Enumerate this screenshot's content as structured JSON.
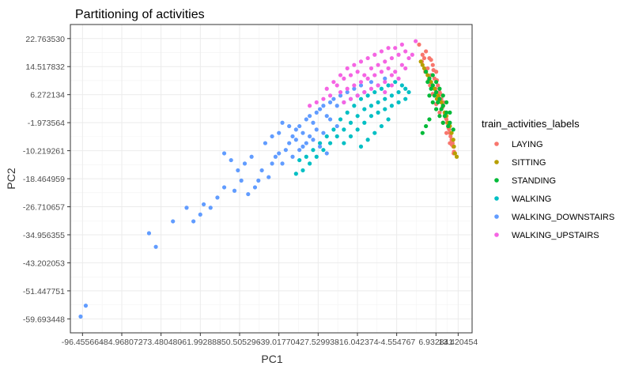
{
  "chart_data": {
    "type": "scatter",
    "title": "Partitioning of activities",
    "xlabel": "PC1",
    "ylabel": "PC2",
    "xlim": [
      -100.0,
      17.5
    ],
    "ylim": [
      -63.8,
      26.9
    ],
    "grid": true,
    "legend": {
      "title": "train_activities_labels",
      "placement": "right"
    },
    "x_ticks": [
      {
        "value": -96.455664,
        "label": "-96.455664"
      },
      {
        "value": -84.968072,
        "label": "-84.968072"
      },
      {
        "value": -73.48048,
        "label": "-73.480480"
      },
      {
        "value": -61.992888,
        "label": "-61.992888"
      },
      {
        "value": -50.505296,
        "label": "-50.505296"
      },
      {
        "value": -39.017704,
        "label": "-39.017704"
      },
      {
        "value": -27.529938,
        "label": "-27.529938"
      },
      {
        "value": -16.042374,
        "label": "-16.042374"
      },
      {
        "value": -4.554767,
        "label": "-4.554767"
      },
      {
        "value": 6.932841,
        "label": "6.932841"
      },
      {
        "value": 13.420454,
        "label": "13.420454"
      }
    ],
    "x_tick_note": "tick labels overlap in the original rendering",
    "y_ticks": [
      {
        "value": 22.76353,
        "label": "22.763530"
      },
      {
        "value": 14.517832,
        "label": "14.517832"
      },
      {
        "value": 6.272134,
        "label": "6.272134"
      },
      {
        "value": -1.973564,
        "label": "-1.973564"
      },
      {
        "value": -10.219261,
        "label": "-10.219261"
      },
      {
        "value": -18.464959,
        "label": "-18.464959"
      },
      {
        "value": -26.710657,
        "label": "-26.710657"
      },
      {
        "value": -34.956355,
        "label": "-34.956355"
      },
      {
        "value": -43.202053,
        "label": "-43.202053"
      },
      {
        "value": -51.447751,
        "label": "-51.447751"
      },
      {
        "value": -59.693448,
        "label": "-59.693448"
      }
    ],
    "series": [
      {
        "name": "LAYING",
        "color": "#F8766D",
        "points": [
          [
            2,
            21
          ],
          [
            4,
            19
          ],
          [
            5,
            17
          ],
          [
            5.5,
            16.5
          ],
          [
            3,
            18
          ],
          [
            6,
            15
          ],
          [
            7,
            13
          ],
          [
            6.5,
            11
          ],
          [
            7.5,
            9
          ],
          [
            8,
            7
          ],
          [
            8.5,
            5
          ],
          [
            9,
            3
          ],
          [
            9.5,
            1
          ],
          [
            10,
            -1
          ],
          [
            10.5,
            -3
          ],
          [
            11,
            -5
          ],
          [
            11.5,
            -7
          ],
          [
            12,
            -9
          ],
          [
            12.2,
            -10.5
          ],
          [
            11.8,
            -8
          ],
          [
            10.8,
            -4
          ],
          [
            9.8,
            -0.5
          ],
          [
            8.8,
            2.5
          ],
          [
            7.8,
            6
          ],
          [
            6.8,
            8
          ],
          [
            5.5,
            12
          ],
          [
            4.5,
            14
          ],
          [
            3.5,
            17
          ],
          [
            9.2,
            4
          ],
          [
            10.2,
            -2
          ],
          [
            11.2,
            -6
          ],
          [
            12.1,
            -11
          ],
          [
            7.2,
            10.5
          ],
          [
            6.2,
            13.5
          ],
          [
            8.2,
            6.5
          ],
          [
            9.6,
            0.5
          ],
          [
            10.6,
            -3.5
          ],
          [
            11.6,
            -8.5
          ],
          [
            5.2,
            9
          ],
          [
            6,
            6.5
          ],
          [
            7,
            3.5
          ],
          [
            8,
            1
          ],
          [
            9,
            -2
          ],
          [
            10,
            -5
          ],
          [
            11,
            -8
          ],
          [
            4.8,
            10.5
          ],
          [
            3.8,
            13
          ],
          [
            2.8,
            16
          ]
        ]
      },
      {
        "name": "SITTING",
        "color": "#B79F00",
        "points": [
          [
            2.5,
            16
          ],
          [
            4,
            13
          ],
          [
            5,
            11
          ],
          [
            6,
            9
          ],
          [
            7,
            7
          ],
          [
            8,
            5
          ],
          [
            9,
            3
          ],
          [
            10,
            0
          ],
          [
            11,
            -3
          ],
          [
            12,
            -7
          ],
          [
            12.5,
            -11
          ],
          [
            3.5,
            14
          ],
          [
            4.5,
            12
          ],
          [
            6.5,
            8
          ],
          [
            7.5,
            6
          ],
          [
            8.5,
            4
          ],
          [
            9.5,
            1
          ],
          [
            10.5,
            -2
          ],
          [
            11.5,
            -5
          ],
          [
            12.2,
            -9
          ],
          [
            13,
            -12
          ],
          [
            3,
            15
          ],
          [
            5.5,
            10
          ],
          [
            7.2,
            5
          ]
        ]
      },
      {
        "name": "STANDING",
        "color": "#00BA38",
        "points": [
          [
            4,
            13
          ],
          [
            5,
            11
          ],
          [
            6,
            9
          ],
          [
            7,
            7
          ],
          [
            8,
            5
          ],
          [
            9,
            3
          ],
          [
            10,
            1
          ],
          [
            11,
            -2
          ],
          [
            4.5,
            10
          ],
          [
            5.5,
            8
          ],
          [
            6.5,
            6
          ],
          [
            7.5,
            4
          ],
          [
            8.5,
            2
          ],
          [
            9.5,
            0
          ],
          [
            10.5,
            -3
          ],
          [
            6,
            12
          ],
          [
            7,
            10
          ],
          [
            8,
            8
          ],
          [
            9,
            6
          ],
          [
            10,
            4
          ],
          [
            11,
            1
          ],
          [
            5,
            6
          ],
          [
            6,
            4
          ],
          [
            7,
            2
          ],
          [
            8,
            0
          ],
          [
            9,
            -2
          ],
          [
            4,
            -3
          ],
          [
            3,
            -5
          ],
          [
            5,
            -1
          ],
          [
            12,
            -4
          ]
        ]
      },
      {
        "name": "WALKING",
        "color": "#00BFC4",
        "points": [
          [
            -22,
            -6
          ],
          [
            -20,
            -4
          ],
          [
            -18,
            -2
          ],
          [
            -16,
            0
          ],
          [
            -14,
            2
          ],
          [
            -12,
            3
          ],
          [
            -10,
            4
          ],
          [
            -8,
            5
          ],
          [
            -6,
            6
          ],
          [
            -4,
            7
          ],
          [
            -2,
            8
          ],
          [
            -24,
            -8
          ],
          [
            -26,
            -10
          ],
          [
            -28,
            -12
          ],
          [
            -30,
            -14
          ],
          [
            -32,
            -16
          ],
          [
            -34,
            -17
          ],
          [
            -21,
            -1
          ],
          [
            -19,
            1
          ],
          [
            -17,
            3
          ],
          [
            -15,
            5
          ],
          [
            -13,
            6
          ],
          [
            -11,
            7
          ],
          [
            -9,
            8
          ],
          [
            -7,
            9
          ],
          [
            -5,
            10
          ],
          [
            -3,
            9
          ],
          [
            -1,
            7
          ],
          [
            -23,
            -4
          ],
          [
            -25,
            -6
          ],
          [
            -27,
            -8
          ],
          [
            -29,
            -10
          ],
          [
            -31,
            -12
          ],
          [
            -33,
            -13
          ],
          [
            -20,
            -8
          ],
          [
            -18,
            -6
          ],
          [
            -16,
            -4
          ],
          [
            -14,
            -2
          ],
          [
            -12,
            0
          ],
          [
            -10,
            1
          ],
          [
            -8,
            2
          ],
          [
            -6,
            3
          ],
          [
            -4,
            4
          ],
          [
            -2,
            5
          ],
          [
            -15,
            -9
          ],
          [
            -13,
            -7
          ],
          [
            -11,
            -5
          ],
          [
            -9,
            -3
          ],
          [
            -7,
            -1
          ]
        ]
      },
      {
        "name": "WALKING_DOWNSTAIRS",
        "color": "#619CFF",
        "points": [
          [
            -97,
            -59
          ],
          [
            -95.5,
            -55.8
          ],
          [
            -77,
            -34.5
          ],
          [
            -75,
            -38.5
          ],
          [
            -70,
            -31
          ],
          [
            -66,
            -27
          ],
          [
            -64,
            -31
          ],
          [
            -62,
            -29
          ],
          [
            -61,
            -26
          ],
          [
            -59,
            -27
          ],
          [
            -57,
            -24
          ],
          [
            -55,
            -21
          ],
          [
            -52,
            -22
          ],
          [
            -50,
            -19
          ],
          [
            -48,
            -23
          ],
          [
            -46,
            -21
          ],
          [
            -45,
            -19
          ],
          [
            -44,
            -16
          ],
          [
            -42,
            -18
          ],
          [
            -41,
            -14
          ],
          [
            -40,
            -12
          ],
          [
            -39,
            -11
          ],
          [
            -38,
            -14
          ],
          [
            -37,
            -10
          ],
          [
            -36,
            -8
          ],
          [
            -35,
            -6
          ],
          [
            -34,
            -4
          ],
          [
            -33,
            -3
          ],
          [
            -32,
            -5
          ],
          [
            -31,
            -1
          ],
          [
            -30,
            0
          ],
          [
            -29,
            -2
          ],
          [
            -28,
            1
          ],
          [
            -27,
            2
          ],
          [
            -26,
            3
          ],
          [
            -25,
            0
          ],
          [
            -24,
            4
          ],
          [
            -23,
            5
          ],
          [
            -22,
            3
          ],
          [
            -21,
            6
          ],
          [
            -20,
            4
          ],
          [
            -19,
            7
          ],
          [
            -18,
            5
          ],
          [
            -17,
            8
          ],
          [
            -16,
            6
          ],
          [
            -15,
            9
          ],
          [
            -14,
            7
          ],
          [
            -12,
            10
          ],
          [
            -10,
            9
          ],
          [
            -8,
            11
          ],
          [
            -38,
            -2
          ],
          [
            -36,
            -3
          ],
          [
            -34,
            -7
          ],
          [
            -32,
            -9
          ],
          [
            -30,
            -6
          ],
          [
            -28,
            -4
          ],
          [
            -26,
            -5
          ],
          [
            -24,
            -1
          ],
          [
            -22,
            -3
          ],
          [
            -55,
            -11
          ],
          [
            -53,
            -13
          ],
          [
            -51,
            -16
          ],
          [
            -49,
            -14
          ],
          [
            -47,
            -12
          ],
          [
            -43,
            -8
          ],
          [
            -41,
            -6
          ],
          [
            -39,
            -5
          ],
          [
            -35,
            -12
          ],
          [
            -33,
            -10
          ],
          [
            -31,
            -8
          ],
          [
            -29,
            -7
          ],
          [
            -27,
            -9
          ],
          [
            -25,
            -11
          ]
        ]
      },
      {
        "name": "WALKING_UPSTAIRS",
        "color": "#F564E3",
        "points": [
          [
            -22,
            9
          ],
          [
            -20,
            11
          ],
          [
            -18,
            12
          ],
          [
            -16,
            13
          ],
          [
            -14,
            12
          ],
          [
            -12,
            14
          ],
          [
            -10,
            15
          ],
          [
            -8,
            16
          ],
          [
            -6,
            17
          ],
          [
            -4,
            18
          ],
          [
            -2,
            19
          ],
          [
            -1,
            17
          ],
          [
            -3,
            15
          ],
          [
            -5,
            13
          ],
          [
            -7,
            14
          ],
          [
            -9,
            13
          ],
          [
            -11,
            12
          ],
          [
            -13,
            11
          ],
          [
            -15,
            10
          ],
          [
            -17,
            9
          ],
          [
            -19,
            8
          ],
          [
            -21,
            7
          ],
          [
            -24,
            6
          ],
          [
            -26,
            5
          ],
          [
            -28,
            4
          ],
          [
            -30,
            3
          ],
          [
            -25,
            8
          ],
          [
            -23,
            10
          ],
          [
            -21,
            12
          ],
          [
            -19,
            14
          ],
          [
            -17,
            15
          ],
          [
            -15,
            16
          ],
          [
            -13,
            17
          ],
          [
            -11,
            18
          ],
          [
            -9,
            19
          ],
          [
            -7,
            20
          ],
          [
            -5,
            20
          ],
          [
            -3,
            21
          ],
          [
            -6,
            12
          ],
          [
            -8,
            10
          ],
          [
            -10,
            9
          ],
          [
            -12,
            8
          ],
          [
            -14,
            7
          ],
          [
            -16,
            6
          ],
          [
            -18,
            5
          ],
          [
            -20,
            4
          ],
          [
            -2,
            14
          ],
          [
            -4,
            11
          ],
          [
            -6,
            9
          ],
          [
            -8,
            7
          ],
          [
            1,
            22
          ],
          [
            0,
            18
          ]
        ]
      }
    ]
  }
}
